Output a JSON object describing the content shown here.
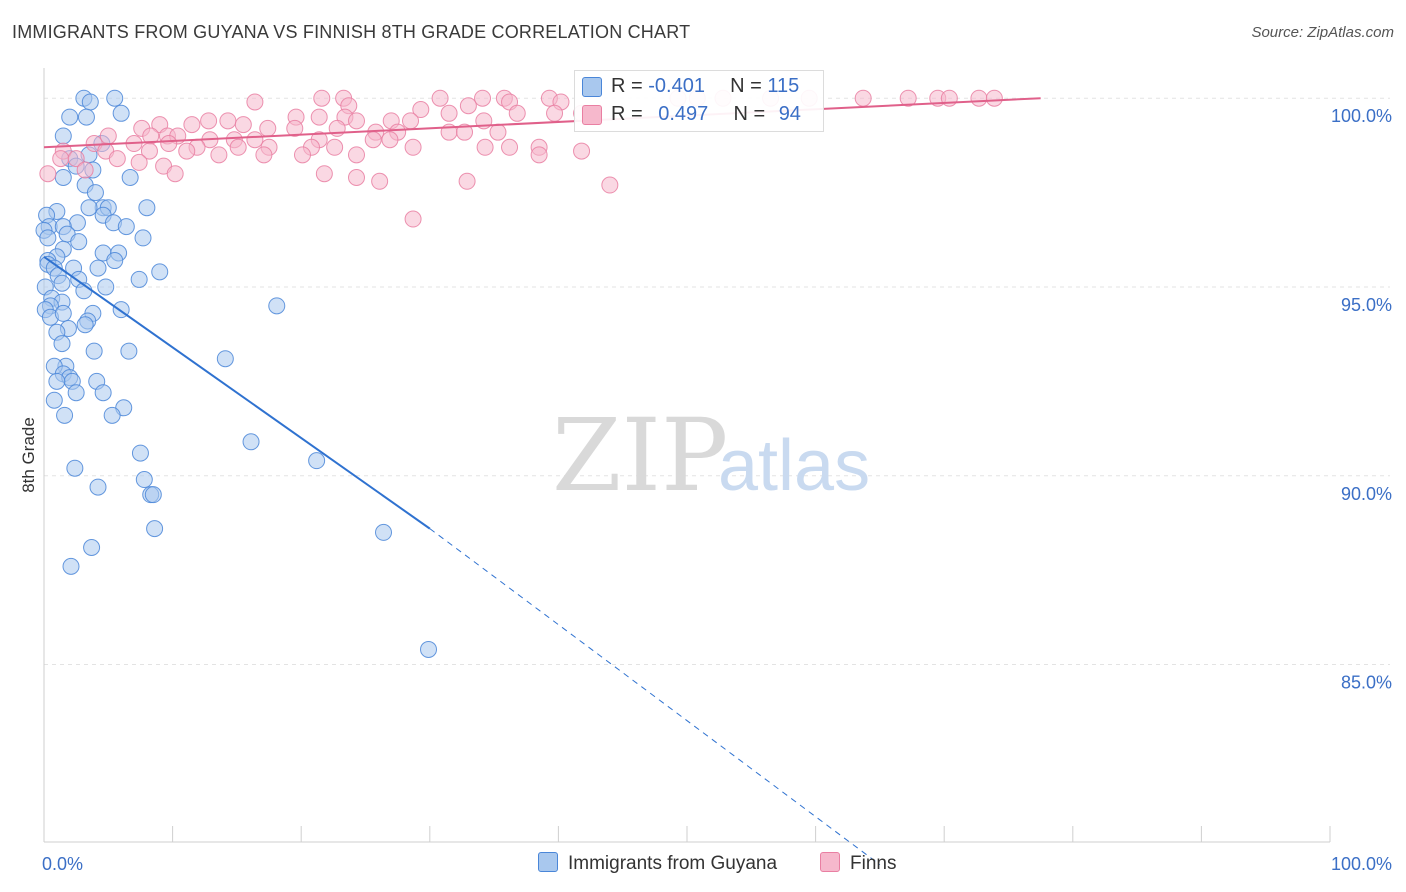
{
  "title": "IMMIGRANTS FROM GUYANA VS FINNISH 8TH GRADE CORRELATION CHART",
  "source": "Source: ZipAtlas.com",
  "watermark": {
    "zip": "ZIP",
    "atlas": "atlas"
  },
  "legend": {
    "rows": [
      {
        "r_label": "R = ",
        "r_value": "-0.401",
        "n_label": "N = ",
        "n_value": "115"
      },
      {
        "r_label": "R = ",
        "r_value": "0.497",
        "n_label": "N = ",
        "n_value": "94"
      }
    ]
  },
  "bottom_legend": [
    "Immigrants from Guyana",
    "Finns"
  ],
  "colors": {
    "blue_fill": "#a9c8ee",
    "blue_stroke": "#4a86d8",
    "blue_line": "#2f72d0",
    "pink_fill": "#f6b8cc",
    "pink_stroke": "#e97fa2",
    "pink_line": "#e0608a",
    "tick_label": "#3b6fc6",
    "grid": "#e3e3e3"
  },
  "chart_data": {
    "type": "scatter",
    "title": "IMMIGRANTS FROM GUYANA VS FINNISH 8TH GRADE CORRELATION CHART",
    "xlabel": "",
    "ylabel": "8th Grade",
    "xlim": [
      0,
      100
    ],
    "ylim": [
      80.3,
      100.8
    ],
    "x_tick_labels": [
      {
        "value": 0,
        "label": "0.0%"
      },
      {
        "value": 100,
        "label": "100.0%"
      }
    ],
    "x_minor_ticks": [
      10,
      20,
      30,
      40,
      50,
      60,
      70,
      80,
      90,
      100
    ],
    "y_ticks": [
      {
        "value": 100,
        "label": "100.0%"
      },
      {
        "value": 95,
        "label": "95.0%"
      },
      {
        "value": 90,
        "label": "90.0%"
      },
      {
        "value": 85,
        "label": "85.0%"
      }
    ],
    "grid": true,
    "series": [
      {
        "name": "Immigrants from Guyana",
        "color": "blue",
        "R": -0.401,
        "N": 115,
        "trend": {
          "x0": 0,
          "y0": 95.8,
          "x1": 30,
          "y1": 88.6,
          "dashed_to": [
            65,
            79.7
          ]
        },
        "points": [
          [
            3.1,
            100
          ],
          [
            5.5,
            100
          ],
          [
            3.6,
            99.9
          ],
          [
            6,
            99.6
          ],
          [
            2,
            99.5
          ],
          [
            3.3,
            99.5
          ],
          [
            1.5,
            99
          ],
          [
            4.5,
            98.8
          ],
          [
            3.5,
            98.5
          ],
          [
            2,
            98.4
          ],
          [
            2.5,
            98.2
          ],
          [
            3.8,
            98.1
          ],
          [
            1.5,
            97.9
          ],
          [
            6.7,
            97.9
          ],
          [
            3.2,
            97.7
          ],
          [
            4,
            97.5
          ],
          [
            4.6,
            97.1
          ],
          [
            3.5,
            97.1
          ],
          [
            5,
            97.1
          ],
          [
            8,
            97.1
          ],
          [
            1,
            97
          ],
          [
            0.2,
            96.9
          ],
          [
            4.6,
            96.9
          ],
          [
            2.6,
            96.7
          ],
          [
            5.4,
            96.7
          ],
          [
            6.4,
            96.6
          ],
          [
            0.4,
            96.6
          ],
          [
            1.5,
            96.6
          ],
          [
            0,
            96.5
          ],
          [
            1.8,
            96.4
          ],
          [
            7.7,
            96.3
          ],
          [
            0.3,
            96.3
          ],
          [
            2.7,
            96.2
          ],
          [
            1.5,
            96
          ],
          [
            4.6,
            95.9
          ],
          [
            5.8,
            95.9
          ],
          [
            1,
            95.8
          ],
          [
            0.3,
            95.7
          ],
          [
            5.5,
            95.7
          ],
          [
            0.3,
            95.6
          ],
          [
            0.8,
            95.5
          ],
          [
            4.2,
            95.5
          ],
          [
            2.3,
            95.5
          ],
          [
            9,
            95.4
          ],
          [
            1.1,
            95.3
          ],
          [
            2.7,
            95.2
          ],
          [
            7.4,
            95.2
          ],
          [
            1.4,
            95.1
          ],
          [
            0.1,
            95
          ],
          [
            4.8,
            95
          ],
          [
            3.1,
            94.9
          ],
          [
            0.6,
            94.7
          ],
          [
            1.4,
            94.6
          ],
          [
            0.5,
            94.5
          ],
          [
            18.1,
            94.5
          ],
          [
            6,
            94.4
          ],
          [
            0.1,
            94.4
          ],
          [
            3.8,
            94.3
          ],
          [
            0.5,
            94.2
          ],
          [
            1.5,
            94.3
          ],
          [
            3.4,
            94.1
          ],
          [
            3.2,
            94
          ],
          [
            1.9,
            93.9
          ],
          [
            1,
            93.8
          ],
          [
            1.4,
            93.5
          ],
          [
            3.9,
            93.3
          ],
          [
            6.6,
            93.3
          ],
          [
            14.1,
            93.1
          ],
          [
            1.7,
            92.9
          ],
          [
            0.8,
            92.9
          ],
          [
            1.5,
            92.7
          ],
          [
            2,
            92.6
          ],
          [
            4.1,
            92.5
          ],
          [
            2.2,
            92.5
          ],
          [
            1,
            92.5
          ],
          [
            2.5,
            92.2
          ],
          [
            4.6,
            92.2
          ],
          [
            0.8,
            92
          ],
          [
            6.2,
            91.8
          ],
          [
            5.3,
            91.6
          ],
          [
            1.6,
            91.6
          ],
          [
            16.1,
            90.9
          ],
          [
            7.5,
            90.6
          ],
          [
            21.2,
            90.4
          ],
          [
            2.4,
            90.2
          ],
          [
            7.8,
            89.9
          ],
          [
            4.2,
            89.7
          ],
          [
            8.3,
            89.5
          ],
          [
            8.5,
            89.5
          ],
          [
            8.6,
            88.6
          ],
          [
            26.4,
            88.5
          ],
          [
            3.7,
            88.1
          ],
          [
            2.1,
            87.6
          ],
          [
            29.9,
            85.4
          ]
        ]
      },
      {
        "name": "Finns",
        "color": "pink",
        "R": 0.497,
        "N": 94,
        "trend": {
          "x0": 0,
          "y0": 98.7,
          "x1": 77.5,
          "y1": 100.0
        },
        "points": [
          [
            21.6,
            100
          ],
          [
            23.3,
            100
          ],
          [
            30.8,
            100
          ],
          [
            34.1,
            100
          ],
          [
            35.8,
            100
          ],
          [
            39.3,
            100
          ],
          [
            49.3,
            100
          ],
          [
            52.8,
            100
          ],
          [
            56.5,
            100
          ],
          [
            59.5,
            100
          ],
          [
            63.7,
            100
          ],
          [
            67.2,
            100
          ],
          [
            69.5,
            100
          ],
          [
            72.7,
            100
          ],
          [
            70.4,
            100
          ],
          [
            73.9,
            100
          ],
          [
            50.8,
            100
          ],
          [
            33,
            99.8
          ],
          [
            36.2,
            99.9
          ],
          [
            40.2,
            99.9
          ],
          [
            16.4,
            99.9
          ],
          [
            23.7,
            99.8
          ],
          [
            29.3,
            99.7
          ],
          [
            31.5,
            99.6
          ],
          [
            36.8,
            99.6
          ],
          [
            39.7,
            99.6
          ],
          [
            41.8,
            99.6
          ],
          [
            19.6,
            99.5
          ],
          [
            21.4,
            99.5
          ],
          [
            23.4,
            99.5
          ],
          [
            24.3,
            99.4
          ],
          [
            27,
            99.4
          ],
          [
            28.5,
            99.4
          ],
          [
            34.2,
            99.4
          ],
          [
            12.8,
            99.4
          ],
          [
            14.3,
            99.4
          ],
          [
            15.5,
            99.3
          ],
          [
            9,
            99.3
          ],
          [
            11.5,
            99.3
          ],
          [
            7.6,
            99.2
          ],
          [
            17.4,
            99.2
          ],
          [
            19.5,
            99.2
          ],
          [
            22.8,
            99.2
          ],
          [
            25.8,
            99.1
          ],
          [
            27.5,
            99.1
          ],
          [
            31.5,
            99.1
          ],
          [
            32.7,
            99.1
          ],
          [
            35.3,
            99.1
          ],
          [
            5,
            99
          ],
          [
            8.3,
            99
          ],
          [
            9.6,
            99
          ],
          [
            10.4,
            99
          ],
          [
            12.9,
            98.9
          ],
          [
            14.8,
            98.9
          ],
          [
            16.4,
            98.9
          ],
          [
            21.4,
            98.9
          ],
          [
            25.6,
            98.9
          ],
          [
            26.9,
            98.9
          ],
          [
            3.9,
            98.8
          ],
          [
            7,
            98.8
          ],
          [
            9.7,
            98.8
          ],
          [
            11.9,
            98.7
          ],
          [
            15.1,
            98.7
          ],
          [
            17.5,
            98.7
          ],
          [
            20.8,
            98.7
          ],
          [
            22.6,
            98.7
          ],
          [
            28.7,
            98.7
          ],
          [
            34.3,
            98.7
          ],
          [
            36.2,
            98.7
          ],
          [
            38.5,
            98.7
          ],
          [
            1.5,
            98.6
          ],
          [
            4.8,
            98.6
          ],
          [
            8.2,
            98.6
          ],
          [
            11.1,
            98.6
          ],
          [
            13.6,
            98.5
          ],
          [
            17.1,
            98.5
          ],
          [
            20.1,
            98.5
          ],
          [
            24.3,
            98.5
          ],
          [
            1.3,
            98.4
          ],
          [
            2.5,
            98.4
          ],
          [
            5.7,
            98.4
          ],
          [
            7.4,
            98.3
          ],
          [
            9.3,
            98.2
          ],
          [
            3.2,
            98.1
          ],
          [
            10.2,
            98.0
          ],
          [
            0.3,
            98.0
          ],
          [
            21.8,
            98.0
          ],
          [
            24.3,
            97.9
          ],
          [
            26.1,
            97.8
          ],
          [
            32.9,
            97.8
          ],
          [
            28.7,
            96.8
          ],
          [
            38.5,
            98.5
          ],
          [
            41.8,
            98.6
          ],
          [
            44,
            97.7
          ]
        ]
      }
    ]
  }
}
